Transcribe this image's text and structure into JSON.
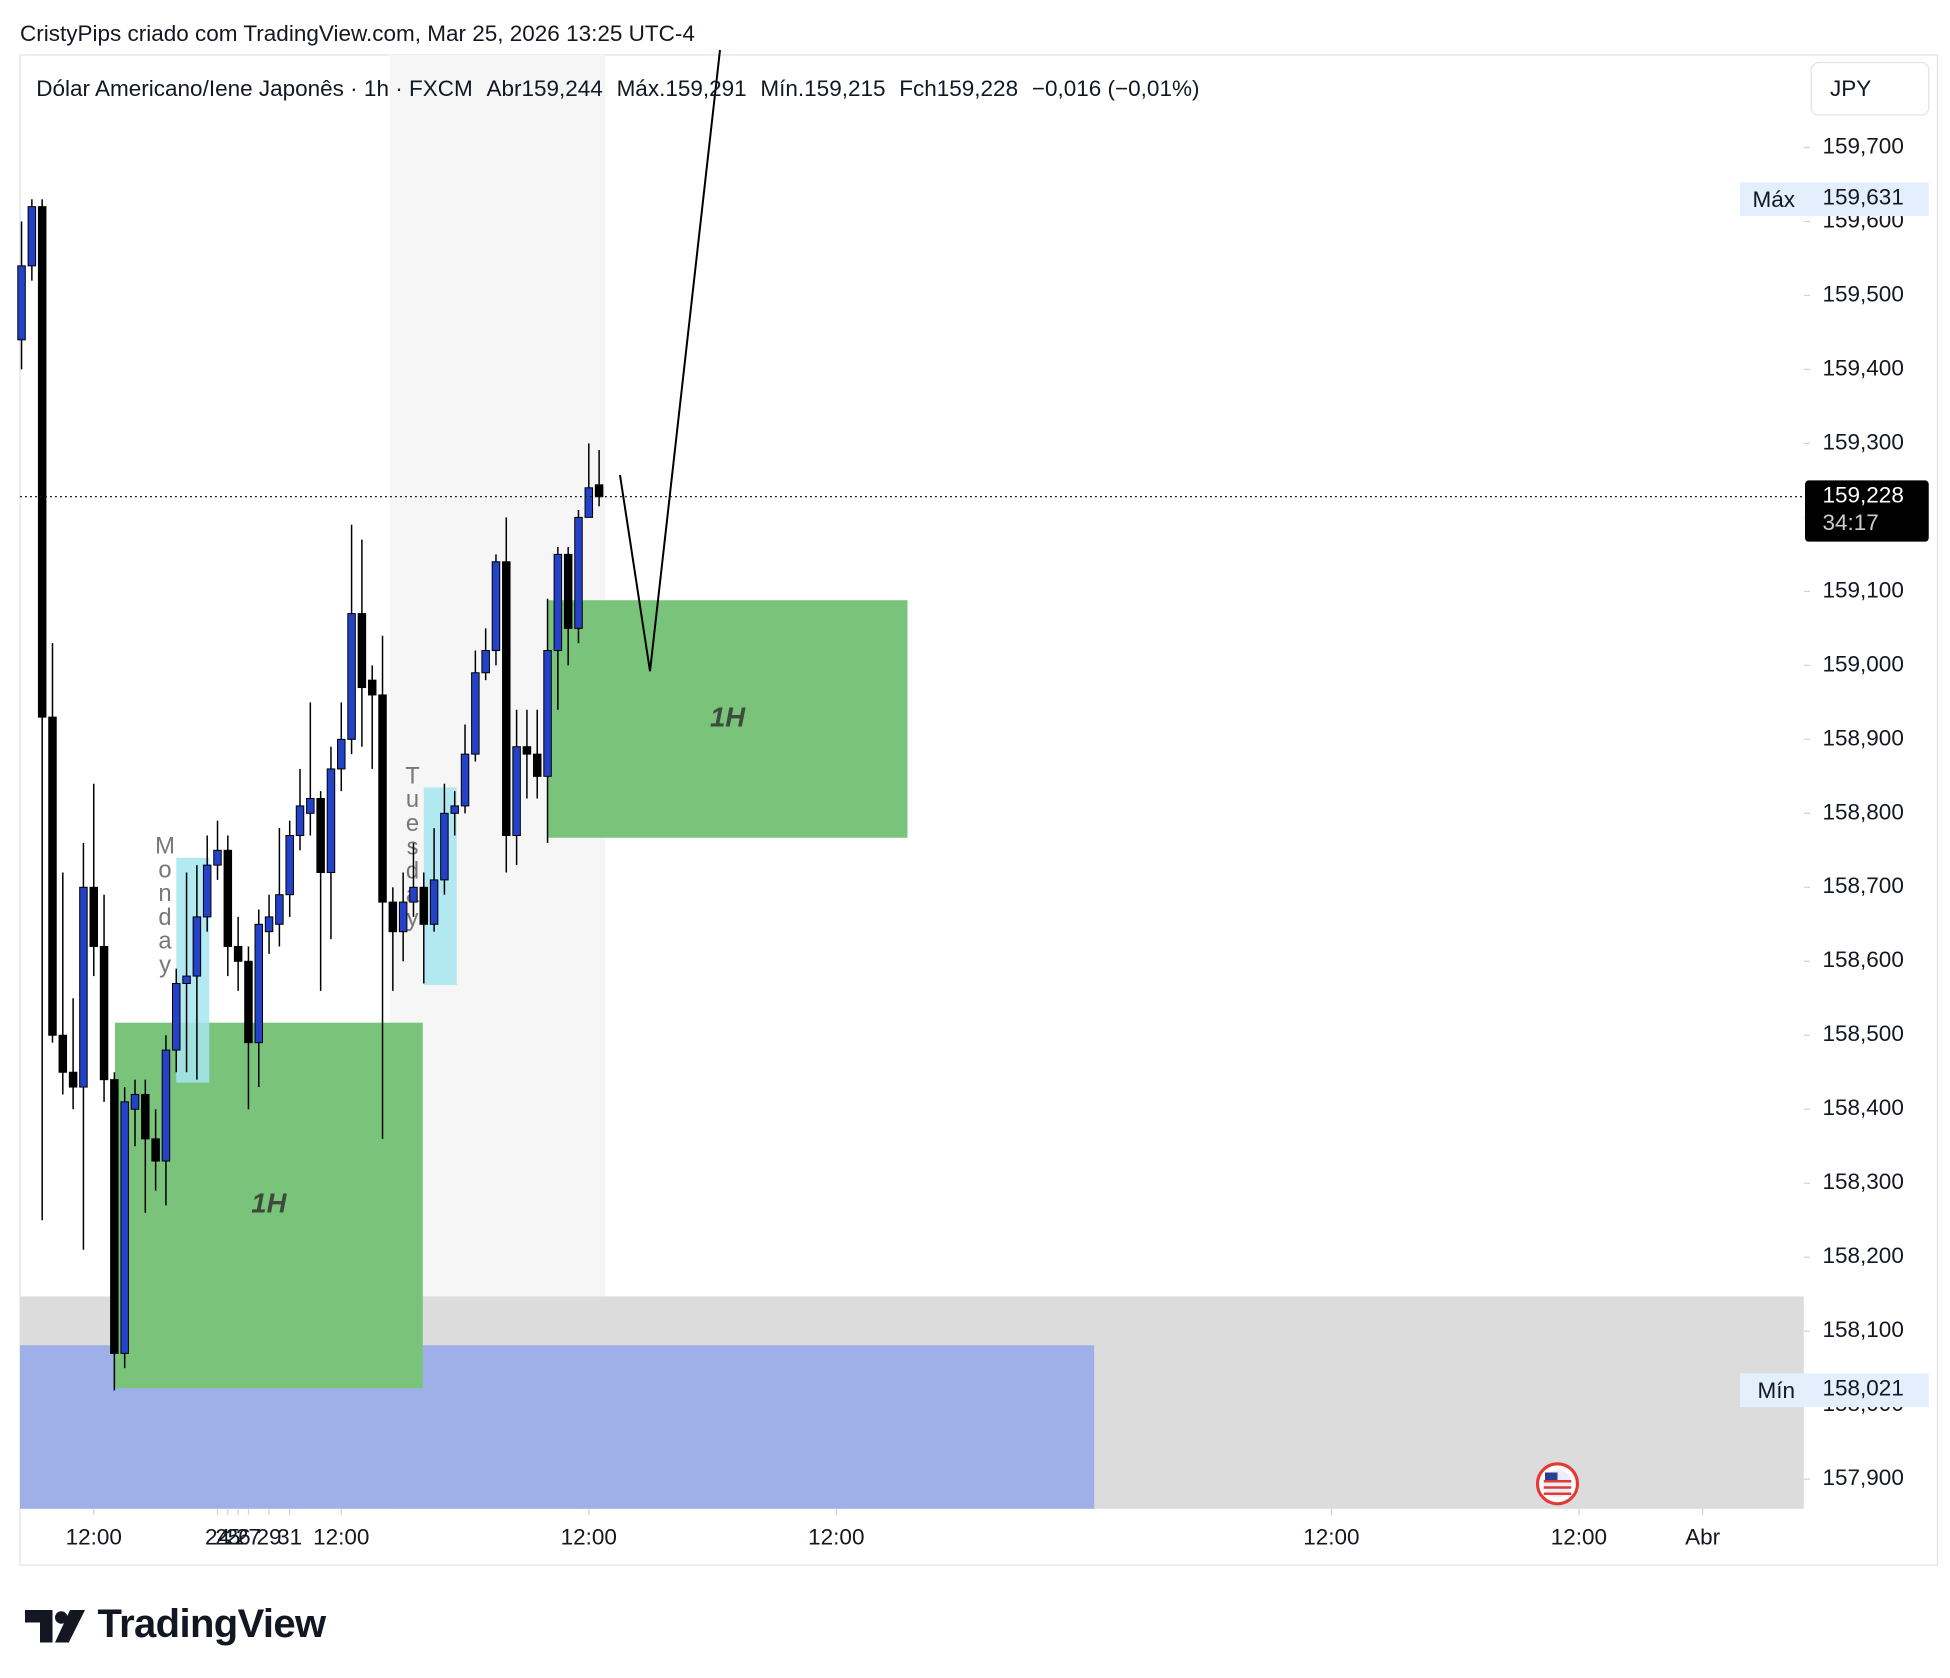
{
  "chart_data": {
    "type": "candlestick",
    "attribution": "CristyPips criado com TradingView.com, Mar 25, 2026 13:25 UTC-4",
    "symbol": "Dólar Americano/Iene Japonês · 1h · FXCM",
    "ohlc_labels": [
      "Abr159,244",
      "Máx.159,291",
      "Mín.159,215",
      "Fch159,228",
      "−0,016 (−0,01%)"
    ],
    "currency": "JPY",
    "brand": "TradingView",
    "up_color": "#2442c8",
    "down_color": "#000000",
    "x": [
      5,
      6,
      7,
      8,
      9,
      10,
      11,
      12,
      13,
      14,
      15,
      16,
      17,
      18,
      19,
      20,
      21,
      22,
      23,
      24,
      25,
      26,
      27,
      28,
      29,
      30,
      31,
      32,
      33,
      34,
      35,
      36,
      37,
      38,
      39,
      40,
      41,
      42,
      43,
      44,
      45,
      46,
      47,
      48,
      49,
      50,
      51,
      52,
      53,
      54,
      55,
      56,
      57,
      58,
      59,
      60,
      61
    ],
    "open": [
      159.44,
      159.54,
      159.62,
      158.93,
      158.5,
      158.45,
      158.43,
      158.7,
      158.62,
      158.44,
      158.07,
      158.4,
      158.42,
      158.36,
      158.33,
      158.48,
      158.57,
      158.58,
      158.66,
      158.73,
      158.75,
      158.62,
      158.6,
      158.49,
      158.64,
      158.65,
      158.69,
      158.77,
      158.8,
      158.82,
      158.72,
      158.86,
      158.9,
      159.07,
      158.98,
      158.96,
      158.68,
      158.64,
      158.68,
      158.7,
      158.65,
      158.71,
      158.8,
      158.81,
      158.88,
      158.99,
      159.02,
      159.14,
      158.77,
      158.89,
      158.88,
      158.85,
      159.02,
      159.15,
      159.05,
      159.2,
      159.244
    ],
    "high": [
      159.6,
      159.63,
      159.63,
      159.03,
      158.72,
      158.55,
      158.76,
      158.84,
      158.69,
      158.45,
      158.43,
      158.44,
      158.44,
      158.4,
      158.5,
      158.59,
      158.72,
      158.73,
      158.77,
      158.79,
      158.77,
      158.66,
      158.62,
      158.67,
      158.69,
      158.78,
      158.79,
      158.86,
      158.95,
      158.83,
      158.89,
      158.95,
      159.19,
      159.17,
      159.0,
      159.04,
      158.7,
      158.72,
      158.76,
      158.72,
      158.78,
      158.84,
      158.83,
      158.92,
      159.02,
      159.05,
      159.15,
      159.2,
      158.94,
      158.94,
      158.94,
      159.09,
      159.16,
      159.16,
      159.21,
      159.3,
      159.291
    ],
    "low": [
      159.4,
      159.52,
      158.25,
      158.49,
      158.42,
      158.4,
      158.21,
      158.58,
      158.41,
      158.02,
      158.05,
      158.35,
      158.26,
      158.29,
      158.27,
      158.45,
      158.45,
      158.44,
      158.64,
      158.71,
      158.58,
      158.56,
      158.4,
      158.43,
      158.61,
      158.62,
      158.66,
      158.75,
      158.77,
      158.56,
      158.63,
      158.83,
      158.88,
      158.89,
      158.86,
      158.36,
      158.56,
      158.6,
      158.66,
      158.57,
      158.64,
      158.69,
      158.77,
      158.8,
      158.87,
      158.98,
      159.0,
      158.72,
      158.73,
      158.82,
      158.82,
      158.76,
      158.94,
      159.0,
      159.03,
      159.21,
      159.215
    ],
    "close": [
      159.54,
      159.62,
      158.93,
      158.5,
      158.45,
      158.43,
      158.7,
      158.62,
      158.44,
      158.07,
      158.41,
      158.42,
      158.36,
      158.33,
      158.48,
      158.57,
      158.58,
      158.66,
      158.73,
      158.75,
      158.62,
      158.6,
      158.49,
      158.65,
      158.66,
      158.69,
      158.77,
      158.81,
      158.82,
      158.72,
      158.86,
      158.9,
      159.07,
      158.97,
      158.96,
      158.68,
      158.64,
      158.68,
      158.7,
      158.65,
      158.71,
      158.8,
      158.81,
      158.88,
      158.99,
      159.02,
      159.14,
      158.77,
      158.89,
      158.88,
      158.85,
      159.02,
      159.15,
      159.05,
      159.2,
      159.24,
      159.228
    ],
    "xlim": [
      4.85,
      177.8
    ],
    "xticks": [
      {
        "value": 12,
        "label": "12:00"
      },
      24,
      {
        "value": 36,
        "label": "12:00"
      },
      25,
      {
        "value": 60,
        "label": "12:00"
      },
      26,
      {
        "value": 84,
        "label": "12:00"
      },
      27,
      29,
      {
        "value": 132,
        "label": "12:00"
      },
      31,
      {
        "value": 156,
        "label": "12:00"
      },
      {
        "value": 168,
        "label": "Abr"
      }
    ],
    "ylim": [
      157.86,
      159.825
    ],
    "yticks": [
      {
        "value": 157.9,
        "label": "157,900"
      },
      {
        "value": 158.0,
        "label": "158,000"
      },
      {
        "value": 158.1,
        "label": "158,100"
      },
      {
        "value": 158.2,
        "label": "158,200"
      },
      {
        "value": 158.3,
        "label": "158,300"
      },
      {
        "value": 158.4,
        "label": "158,400"
      },
      {
        "value": 158.5,
        "label": "158,500"
      },
      {
        "value": 158.6,
        "label": "158,600"
      },
      {
        "value": 158.7,
        "label": "158,700"
      },
      {
        "value": 158.8,
        "label": "158,800"
      },
      {
        "value": 158.9,
        "label": "158,900"
      },
      {
        "value": 159.0,
        "label": "159,000"
      },
      {
        "value": 159.1,
        "label": "159,100"
      },
      {
        "value": 159.2,
        "label": "159,200"
      },
      {
        "value": 159.3,
        "label": "159,300"
      },
      {
        "value": 159.4,
        "label": "159,400"
      },
      {
        "value": 159.5,
        "label": "159,500"
      },
      {
        "value": 159.6,
        "label": "159,600"
      },
      {
        "value": 159.7,
        "label": "159,700"
      }
    ],
    "grid": false,
    "last_price": {
      "value": 159.228,
      "label": "159,228"
    },
    "countdown": "34:17",
    "max_marker": {
      "tag": "Máx",
      "value": 159.631,
      "label": "159,631"
    },
    "min_marker": {
      "tag": "Mín",
      "value": 158.021,
      "label": "158,021"
    },
    "session_shade": {
      "x": [
        40.7,
        61.6
      ],
      "color": "#f6f6f6"
    },
    "zones": [
      {
        "x": [
          4.85,
          177.8
        ],
        "y": [
          157.86,
          158.147
        ],
        "color": "#dcdcdc"
      },
      {
        "x": [
          4.85,
          109
        ],
        "y": [
          157.86,
          158.081
        ],
        "color": "#9fb0e8"
      },
      {
        "x": [
          14.06,
          43.9
        ],
        "y": [
          158.023,
          158.517
        ],
        "color": "#79c37a",
        "label": "1H"
      },
      {
        "x": [
          56.0,
          90.9
        ],
        "y": [
          158.767,
          159.088
        ],
        "color": "#79c37a",
        "label": "1H"
      }
    ],
    "sessions": [
      {
        "label": "Monday",
        "x": [
          20,
          23.2
        ],
        "y": [
          158.436,
          158.74
        ]
      },
      {
        "label": "Tuesday",
        "x": [
          44,
          47.2
        ],
        "y": [
          158.568,
          158.835
        ]
      }
    ]
  }
}
